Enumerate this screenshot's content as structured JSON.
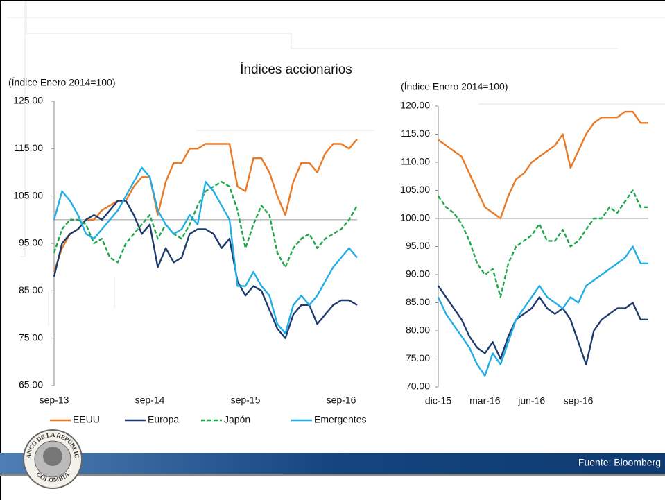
{
  "title": "Índices accionarios",
  "source": "Fuente: Bloomberg",
  "logo": {
    "top": "BANCO DE LA REPÚBLICA",
    "bottom": "COLOMBIA"
  },
  "chart_data": [
    {
      "type": "line",
      "subtitle": "(Índice Enero 2014=100)",
      "categories": [
        "sep-13",
        null,
        null,
        null,
        null,
        null,
        null,
        null,
        null,
        null,
        null,
        null,
        "sep-14",
        null,
        null,
        null,
        null,
        null,
        null,
        null,
        null,
        null,
        null,
        null,
        "sep-15",
        null,
        null,
        null,
        null,
        null,
        null,
        null,
        null,
        null,
        null,
        null,
        "sep-16",
        null,
        null
      ],
      "ylim": [
        65,
        125
      ],
      "yticks": [
        {
          "value": 65,
          "label": "65.00"
        },
        {
          "value": 75,
          "label": "75.00"
        },
        {
          "value": 85,
          "label": "85.00"
        },
        {
          "value": 95,
          "label": "95.00"
        },
        {
          "value": 105,
          "label": "105.00"
        },
        {
          "value": 115,
          "label": "115.00"
        },
        {
          "value": 125,
          "label": "125.00"
        }
      ],
      "hline": 100,
      "legend": "bottom",
      "series": [
        {
          "name": "EEUU",
          "color": "#e97a25",
          "dash": false,
          "values": [
            89,
            94,
            97,
            98,
            100,
            100,
            102,
            103,
            104,
            104,
            107,
            109,
            109,
            101,
            108,
            112,
            112,
            115,
            115,
            116,
            116,
            116,
            116,
            107,
            106,
            113,
            113,
            110,
            105,
            101,
            108,
            112,
            112,
            110,
            114,
            116,
            116,
            115,
            117
          ]
        },
        {
          "name": "Europa",
          "color": "#1f3b6e",
          "dash": false,
          "values": [
            88,
            95,
            97,
            98,
            100,
            101,
            100,
            102,
            104,
            104,
            101,
            97,
            99,
            90,
            94,
            91,
            92,
            97,
            98,
            98,
            97,
            94,
            96,
            87,
            84,
            86,
            85,
            81,
            77,
            75,
            80,
            82,
            82,
            78,
            80,
            82,
            83,
            83,
            82
          ]
        },
        {
          "name": "Japón",
          "color": "#1fa84a",
          "dash": true,
          "values": [
            93,
            98,
            100,
            100,
            99,
            95,
            96,
            92,
            91,
            95,
            97,
            99,
            101,
            96,
            99,
            97,
            96,
            99,
            103,
            106,
            107,
            108,
            107,
            102,
            94,
            99,
            103,
            101,
            93,
            90,
            94,
            96,
            97,
            94,
            96,
            97,
            98,
            100,
            103
          ]
        },
        {
          "name": "Emergentes",
          "color": "#21aee6",
          "dash": false,
          "values": [
            100,
            106,
            104,
            101,
            97,
            96,
            98,
            100,
            102,
            105,
            108,
            111,
            109,
            102,
            99,
            97,
            98,
            101,
            99,
            108,
            106,
            103,
            100,
            86,
            86,
            89,
            86,
            84,
            78,
            76,
            82,
            84,
            82,
            84,
            87,
            90,
            92,
            94,
            92
          ]
        }
      ]
    },
    {
      "type": "line",
      "subtitle": "(Índice Enero 2014=100)",
      "categories": [
        "dic-15",
        null,
        null,
        null,
        null,
        null,
        "mar-16",
        null,
        null,
        null,
        null,
        null,
        "jun-16",
        null,
        null,
        null,
        null,
        null,
        "sep-16",
        null,
        null,
        null,
        null,
        null,
        null,
        null,
        null,
        null
      ],
      "ylim": [
        70,
        120
      ],
      "yticks": [
        {
          "value": 70,
          "label": "70.00"
        },
        {
          "value": 75,
          "label": "75.00"
        },
        {
          "value": 80,
          "label": "80.00"
        },
        {
          "value": 85,
          "label": "85.00"
        },
        {
          "value": 90,
          "label": "90.00"
        },
        {
          "value": 95,
          "label": "95.00"
        },
        {
          "value": 100,
          "label": "100.00"
        },
        {
          "value": 105,
          "label": "105.00"
        },
        {
          "value": 110,
          "label": "110.00"
        },
        {
          "value": 115,
          "label": "115.00"
        },
        {
          "value": 120,
          "label": "120.00"
        }
      ],
      "hline": 100,
      "series": [
        {
          "color": "#e97a25",
          "dash": false,
          "values": [
            114,
            113,
            112,
            111,
            108,
            105,
            102,
            101,
            100,
            104,
            107,
            108,
            110,
            111,
            112,
            113,
            115,
            109,
            112,
            115,
            117,
            118,
            118,
            118,
            119,
            119,
            117,
            117
          ]
        },
        {
          "color": "#1f3b6e",
          "dash": false,
          "values": [
            88,
            86,
            84,
            82,
            79,
            77,
            76,
            78,
            75,
            79,
            82,
            83,
            84,
            86,
            84,
            83,
            84,
            82,
            78,
            74,
            80,
            82,
            83,
            84,
            84,
            85,
            82,
            82
          ]
        },
        {
          "color": "#1fa84a",
          "dash": true,
          "values": [
            104,
            102,
            101,
            99,
            96,
            92,
            90,
            91,
            86,
            92,
            95,
            96,
            97,
            99,
            96,
            96,
            98,
            95,
            96,
            98,
            100,
            100,
            102,
            101,
            103,
            105,
            102,
            102
          ]
        },
        {
          "color": "#21aee6",
          "dash": false,
          "values": [
            86,
            83,
            81,
            79,
            77,
            74,
            72,
            76,
            74,
            78,
            82,
            84,
            86,
            88,
            86,
            85,
            84,
            86,
            85,
            88,
            89,
            90,
            91,
            92,
            93,
            95,
            92,
            92
          ]
        }
      ]
    }
  ]
}
